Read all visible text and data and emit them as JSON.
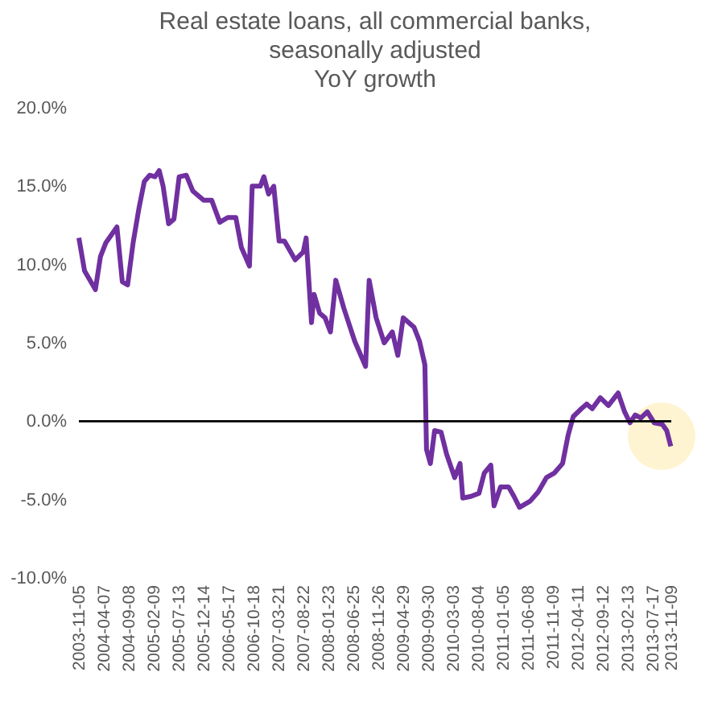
{
  "chart_data": {
    "type": "line",
    "title": "Real estate loans, all commercial banks,\nseasonally adjusted\nYoY growth",
    "x": [
      "2003-11-05",
      "2003-12-10",
      "2004-02-15",
      "2004-03-17",
      "2004-04-20",
      "2004-06-27",
      "2004-07-30",
      "2004-09-01",
      "2004-10-05",
      "2004-11-10",
      "2004-12-13",
      "2005-01-15",
      "2005-02-17",
      "2005-03-15",
      "2005-04-08",
      "2005-05-12",
      "2005-06-14",
      "2005-07-16",
      "2005-08-29",
      "2005-10-08",
      "2005-12-14",
      "2006-02-02",
      "2006-03-24",
      "2006-05-12",
      "2006-07-01",
      "2006-08-04",
      "2006-09-23",
      "2006-10-10",
      "2006-11-29",
      "2006-12-21",
      "2007-01-19",
      "2007-02-20",
      "2007-03-25",
      "2007-04-27",
      "2007-07-02",
      "2007-08-21",
      "2007-09-08",
      "2007-10-11",
      "2007-10-27",
      "2007-11-30",
      "2008-01-03",
      "2008-02-05",
      "2008-03-09",
      "2008-04-28",
      "2008-07-04",
      "2008-09-09",
      "2008-10-01",
      "2008-11-13",
      "2009-01-02",
      "2009-02-21",
      "2009-03-27",
      "2009-04-29",
      "2009-07-05",
      "2009-08-08",
      "2009-09-10",
      "2009-09-20",
      "2009-10-14",
      "2009-11-09",
      "2009-12-19",
      "2010-01-22",
      "2010-03-13",
      "2010-04-15",
      "2010-05-02",
      "2010-06-21",
      "2010-08-10",
      "2010-09-12",
      "2010-10-22",
      "2010-11-11",
      "2010-12-21",
      "2011-02-09",
      "2011-03-14",
      "2011-04-17",
      "2011-06-22",
      "2011-08-11",
      "2011-09-30",
      "2011-11-19",
      "2012-01-08",
      "2012-02-11",
      "2012-03-14",
      "2012-05-03",
      "2012-06-05",
      "2012-07-09",
      "2012-08-28",
      "2012-10-17",
      "2012-12-16",
      "2013-01-25",
      "2013-02-27",
      "2013-04-01",
      "2013-05-05",
      "2013-06-14",
      "2013-07-27",
      "2013-09-15",
      "2013-10-12",
      "2013-11-06"
    ],
    "series": [
      {
        "color": "#7030a0",
        "values": [
          11.7,
          9.6,
          8.4,
          10.5,
          11.4,
          12.4,
          8.9,
          8.7,
          11.4,
          13.6,
          15.3,
          15.7,
          15.6,
          16.0,
          15.0,
          12.6,
          12.9,
          15.6,
          15.7,
          14.7,
          14.1,
          14.1,
          12.7,
          13.0,
          13.0,
          11.1,
          9.9,
          15.0,
          15.0,
          15.6,
          14.5,
          15.0,
          11.5,
          11.5,
          10.3,
          10.8,
          11.7,
          6.3,
          8.1,
          6.9,
          6.6,
          5.7,
          9.0,
          7.2,
          5.1,
          3.5,
          9.0,
          6.6,
          5.0,
          5.7,
          4.2,
          6.6,
          6.0,
          5.1,
          3.6,
          -1.8,
          -2.7,
          -0.6,
          -0.7,
          -2.1,
          -3.6,
          -2.7,
          -4.9,
          -4.8,
          -4.6,
          -3.3,
          -2.8,
          -5.4,
          -4.2,
          -4.2,
          -4.8,
          -5.5,
          -5.1,
          -4.5,
          -3.6,
          -3.3,
          -2.7,
          -0.9,
          0.3,
          0.8,
          1.1,
          0.8,
          1.5,
          1.0,
          1.8,
          0.6,
          -0.1,
          0.4,
          0.2,
          0.6,
          -0.1,
          -0.2,
          -0.6,
          -1.6
        ]
      }
    ],
    "xlim": [
      "2003-11-05",
      "2013-11-09"
    ],
    "xticks": [
      "2003-11-05",
      "2004-04-07",
      "2004-09-08",
      "2005-02-09",
      "2005-07-13",
      "2005-12-14",
      "2006-05-17",
      "2006-10-18",
      "2007-03-21",
      "2007-08-22",
      "2008-01-23",
      "2008-06-25",
      "2008-11-26",
      "2009-04-29",
      "2009-09-30",
      "2010-03-03",
      "2010-08-04",
      "2011-01-05",
      "2011-06-08",
      "2011-11-09",
      "2012-04-11",
      "2012-09-12",
      "2013-02-13",
      "2013-07-17",
      "2013-11-09"
    ],
    "ylim": [
      -10,
      20
    ],
    "yticks": [
      {
        "value": -10,
        "label": "-10.0%"
      },
      {
        "value": -5,
        "label": "-5.0%"
      },
      {
        "value": 0,
        "label": "0.0%"
      },
      {
        "value": 5,
        "label": "5.0%"
      },
      {
        "value": 10,
        "label": "10.0%"
      },
      {
        "value": 15,
        "label": "15.0%"
      },
      {
        "value": 20,
        "label": "20.0%"
      }
    ],
    "ref_lines": [
      {
        "axis": "y",
        "value": 0,
        "color": "#000000"
      }
    ],
    "grid": false,
    "marker": "none",
    "line_style": "solid"
  }
}
